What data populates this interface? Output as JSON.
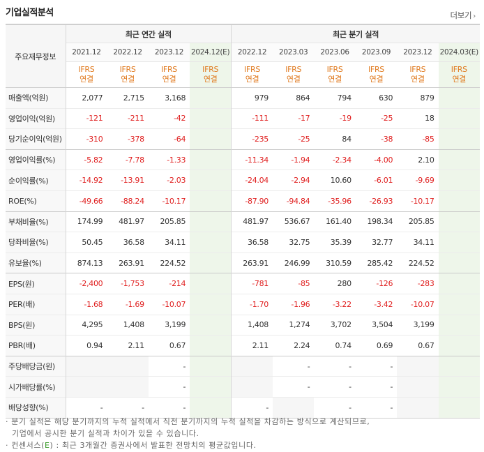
{
  "header": {
    "title": "기업실적분석",
    "more_label": "더보기",
    "more_icon": "chevron-right-icon"
  },
  "table": {
    "row_header_label": "주요재무정보",
    "group_annual": "최근 연간 실적",
    "group_quarter": "최근 분기 실적",
    "annual_periods": [
      "2021.12",
      "2022.12",
      "2023.12",
      "2024.12(E)"
    ],
    "quarter_periods": [
      "2022.12",
      "2023.03",
      "2023.06",
      "2023.09",
      "2023.12",
      "2024.03(E)"
    ],
    "basis_line1": "IFRS",
    "basis_line2": "연결",
    "rows": [
      {
        "label": "매출액(억원)",
        "values": [
          "2,077",
          "2,715",
          "3,168",
          "",
          "979",
          "864",
          "794",
          "630",
          "879",
          ""
        ]
      },
      {
        "label": "영업이익(억원)",
        "values": [
          "-121",
          "-211",
          "-42",
          "",
          "-111",
          "-17",
          "-19",
          "-25",
          "18",
          ""
        ]
      },
      {
        "label": "당기순이익(억원)",
        "values": [
          "-310",
          "-378",
          "-64",
          "",
          "-235",
          "-25",
          "84",
          "-38",
          "-85",
          ""
        ]
      },
      {
        "label": "영업이익률(%)",
        "values": [
          "-5.82",
          "-7.78",
          "-1.33",
          "",
          "-11.34",
          "-1.94",
          "-2.34",
          "-4.00",
          "2.10",
          ""
        ]
      },
      {
        "label": "순이익률(%)",
        "values": [
          "-14.92",
          "-13.91",
          "-2.03",
          "",
          "-24.04",
          "-2.94",
          "10.60",
          "-6.01",
          "-9.69",
          ""
        ]
      },
      {
        "label": "ROE(%)",
        "values": [
          "-49.66",
          "-88.24",
          "-10.17",
          "",
          "-87.90",
          "-94.84",
          "-35.96",
          "-26.93",
          "-10.17",
          ""
        ]
      },
      {
        "label": "부채비율(%)",
        "values": [
          "174.99",
          "481.97",
          "205.85",
          "",
          "481.97",
          "536.67",
          "161.40",
          "198.34",
          "205.85",
          ""
        ]
      },
      {
        "label": "당좌비율(%)",
        "values": [
          "50.45",
          "36.58",
          "34.11",
          "",
          "36.58",
          "32.75",
          "35.39",
          "32.77",
          "34.11",
          ""
        ]
      },
      {
        "label": "유보율(%)",
        "values": [
          "874.13",
          "263.91",
          "224.52",
          "",
          "263.91",
          "246.99",
          "310.59",
          "285.42",
          "224.52",
          ""
        ]
      },
      {
        "label": "EPS(원)",
        "values": [
          "-2,400",
          "-1,753",
          "-214",
          "",
          "-781",
          "-85",
          "280",
          "-126",
          "-283",
          ""
        ]
      },
      {
        "label": "PER(배)",
        "values": [
          "-1.68",
          "-1.69",
          "-10.07",
          "",
          "-1.70",
          "-1.96",
          "-3.22",
          "-3.42",
          "-10.07",
          ""
        ]
      },
      {
        "label": "BPS(원)",
        "values": [
          "4,295",
          "1,408",
          "3,199",
          "",
          "1,408",
          "1,274",
          "3,702",
          "3,504",
          "3,199",
          ""
        ]
      },
      {
        "label": "PBR(배)",
        "values": [
          "0.94",
          "2.11",
          "0.67",
          "",
          "2.11",
          "2.24",
          "0.74",
          "0.69",
          "0.67",
          ""
        ]
      },
      {
        "label": "주당배당금(원)",
        "values": [
          null,
          null,
          "-",
          "",
          null,
          "-",
          "-",
          "-",
          null,
          ""
        ]
      },
      {
        "label": "시가배당률(%)",
        "values": [
          null,
          null,
          "-",
          "",
          null,
          "-",
          "-",
          "-",
          null,
          ""
        ]
      },
      {
        "label": "배당성향(%)",
        "values": [
          "-",
          "-",
          "-",
          "",
          "-",
          null,
          "-",
          "-",
          null,
          ""
        ]
      }
    ]
  },
  "notes": {
    "line1": "· 분기 실적은 해당 분기까지의 누적 실적에서 직전 분기까지의 누적 실적을 차감하는 방식으로 계산되므로,",
    "line2": "기업에서 공시한 분기 실적과 차이가 있을 수 있습니다.",
    "line3_prefix": "· 컨센서스(",
    "line3_e": "E",
    "line3_suffix": ") : 최근 3개월간 증권사에서 발표한 전망치의 평균값입니다."
  },
  "colors": {
    "negative": "#e02020",
    "basis": "#e07a1f",
    "estimate_bg": "#eef6ea"
  }
}
